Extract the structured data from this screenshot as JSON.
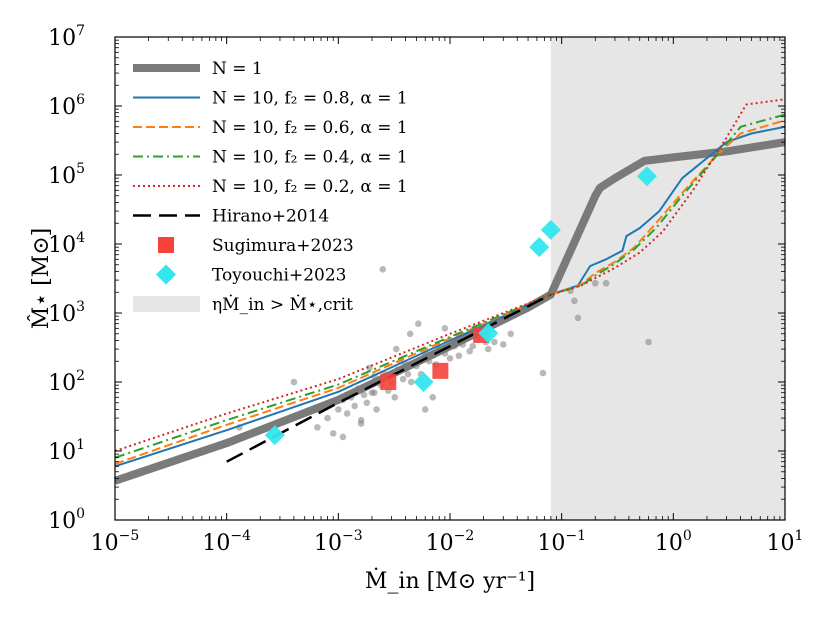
{
  "chart_data": {
    "type": "line",
    "xlabel": "Ṁ_in [M⊙ yr⁻¹]",
    "ylabel": "M̂⋆ [M⊙]",
    "xscale": "log",
    "yscale": "log",
    "xlim": [
      1e-05,
      10
    ],
    "ylim": [
      1,
      10000000.0
    ],
    "x_tick_labels": [
      {
        "base": "10",
        "exp": "−5"
      },
      {
        "base": "10",
        "exp": "−4"
      },
      {
        "base": "10",
        "exp": "−3"
      },
      {
        "base": "10",
        "exp": "−2"
      },
      {
        "base": "10",
        "exp": "−1"
      },
      {
        "base": "10",
        "exp": "0"
      },
      {
        "base": "10",
        "exp": "1"
      }
    ],
    "y_tick_labels": [
      {
        "base": "10",
        "exp": "0"
      },
      {
        "base": "10",
        "exp": "1"
      },
      {
        "base": "10",
        "exp": "2"
      },
      {
        "base": "10",
        "exp": "3"
      },
      {
        "base": "10",
        "exp": "4"
      },
      {
        "base": "10",
        "exp": "5"
      },
      {
        "base": "10",
        "exp": "6"
      },
      {
        "base": "10",
        "exp": "7"
      }
    ],
    "shaded_region": {
      "x": [
        0.08,
        10
      ],
      "label": "ηṀ_in > Ṁ⋆,crit",
      "color": "#e6e6e6"
    },
    "series": [
      {
        "name": "N = 1",
        "style": "solid-thick",
        "color": "#7a7a7a",
        "x": [
          1e-05,
          0.0001,
          0.001,
          0.01,
          0.05,
          0.08,
          0.2,
          0.22,
          0.3,
          0.55,
          1,
          3,
          10
        ],
        "y": [
          3.7,
          13,
          55,
          330,
          1200,
          1850,
          50000,
          65000,
          90000,
          160000,
          180000,
          220000,
          300000
        ]
      },
      {
        "name": "N = 10, f₂ = 0.8, α = 1",
        "style": "solid",
        "color": "#1f77b4",
        "x": [
          1e-05,
          0.0001,
          0.001,
          0.01,
          0.08,
          0.14,
          0.18,
          0.25,
          0.35,
          0.38,
          0.5,
          0.75,
          1.2,
          3,
          5,
          10
        ],
        "y": [
          6,
          20,
          72,
          400,
          1850,
          2500,
          4800,
          6000,
          8000,
          13000,
          17000,
          30000,
          90000,
          300000,
          400000,
          500000
        ]
      },
      {
        "name": "N = 10, f₂ = 0.6, α = 1",
        "style": "dashed",
        "color": "#ff7f0e",
        "x": [
          1e-05,
          0.0001,
          0.001,
          0.01,
          0.08,
          0.15,
          0.2,
          0.3,
          0.45,
          0.7,
          1.2,
          2.5,
          4,
          10
        ],
        "y": [
          6.5,
          24,
          82,
          430,
          1850,
          2600,
          3800,
          5500,
          9000,
          20000,
          55000,
          200000,
          400000,
          620000
        ]
      },
      {
        "name": "N = 10, f₂ = 0.4, α = 1",
        "style": "dashdot",
        "color": "#2ca02c",
        "x": [
          1e-05,
          0.0001,
          0.001,
          0.01,
          0.08,
          0.15,
          0.2,
          0.3,
          0.45,
          0.7,
          1.2,
          2.5,
          4,
          10
        ],
        "y": [
          8,
          28,
          92,
          450,
          1850,
          2500,
          3500,
          5200,
          8500,
          17000,
          50000,
          200000,
          500000,
          750000
        ]
      },
      {
        "name": "N = 10, f₂ = 0.2, α = 1",
        "style": "dotted",
        "color": "#d62728",
        "x": [
          1e-05,
          0.0001,
          0.001,
          0.01,
          0.08,
          0.15,
          0.2,
          0.3,
          0.5,
          0.8,
          1.5,
          3,
          4.5,
          10
        ],
        "y": [
          10,
          35,
          110,
          500,
          1850,
          2500,
          3200,
          4500,
          7500,
          15000,
          60000,
          350000,
          1050000,
          1250000
        ]
      },
      {
        "name": "Hirano+2014",
        "style": "longdash",
        "color": "#000000",
        "x": [
          0.0001,
          0.001,
          0.01,
          0.08
        ],
        "y": [
          7,
          50,
          330,
          1850
        ]
      }
    ],
    "scatter": [
      {
        "name": "Sugimura+2023",
        "marker": "square",
        "color": "#f5423b",
        "x": [
          0.0028,
          0.0082,
          0.019
        ],
        "y": [
          100,
          145,
          480
        ]
      },
      {
        "name": "Toyouchi+2023",
        "marker": "diamond",
        "color": "#33e6ee",
        "x": [
          0.00027,
          0.0058,
          0.022,
          0.063,
          0.08,
          0.58
        ],
        "y": [
          17,
          100,
          510,
          9000,
          16000,
          96000
        ]
      },
      {
        "name": "",
        "marker": "circle",
        "color": "#7f7f7f",
        "x": [
          0.00013,
          0.0004,
          0.00065,
          0.0008,
          0.001,
          0.0011,
          0.0012,
          0.0013,
          0.0014,
          0.0015,
          0.0016,
          0.0017,
          0.0018,
          0.002,
          0.0021,
          0.0022,
          0.0024,
          0.0025,
          0.0026,
          0.0028,
          0.003,
          0.0032,
          0.0034,
          0.0036,
          0.0038,
          0.004,
          0.0042,
          0.0045,
          0.005,
          0.0055,
          0.006,
          0.0065,
          0.007,
          0.0075,
          0.008,
          0.009,
          0.01,
          0.011,
          0.012,
          0.013,
          0.015,
          0.016,
          0.018,
          0.02,
          0.022,
          0.025,
          0.03,
          0.035,
          0.0025,
          0.0019,
          0.006,
          0.007,
          0.0009,
          0.0011,
          0.0033,
          0.0044,
          0.0052,
          0.009,
          0.0016,
          0.021,
          0.0021,
          0.068,
          0.12,
          0.13,
          0.14,
          0.2,
          0.25,
          0.6
        ],
        "y": [
          22,
          100,
          22,
          30,
          40,
          55,
          35,
          60,
          45,
          80,
          28,
          65,
          50,
          70,
          120,
          40,
          90,
          110,
          130,
          75,
          95,
          60,
          150,
          200,
          110,
          180,
          130,
          100,
          170,
          130,
          260,
          200,
          240,
          180,
          300,
          260,
          220,
          330,
          240,
          350,
          280,
          330,
          420,
          460,
          300,
          380,
          350,
          500,
          4300,
          160,
          40,
          60,
          18,
          16,
          300,
          500,
          700,
          600,
          25,
          380,
          70,
          135,
          2100,
          1500,
          850,
          2700,
          2700,
          380
        ]
      }
    ],
    "legend": {
      "placement": "upper-left",
      "entries": [
        {
          "label": "N = 1"
        },
        {
          "label": "N = 10, f₂ = 0.8, α = 1"
        },
        {
          "label": "N = 10, f₂ = 0.6, α = 1"
        },
        {
          "label": "N = 10, f₂ = 0.4, α = 1"
        },
        {
          "label": "N = 10, f₂ = 0.2, α = 1"
        },
        {
          "label": "Hirano+2014"
        },
        {
          "label": "Sugimura+2023"
        },
        {
          "label": "Toyouchi+2023"
        },
        {
          "label": "ηṀ_in > Ṁ⋆,crit"
        }
      ]
    }
  }
}
